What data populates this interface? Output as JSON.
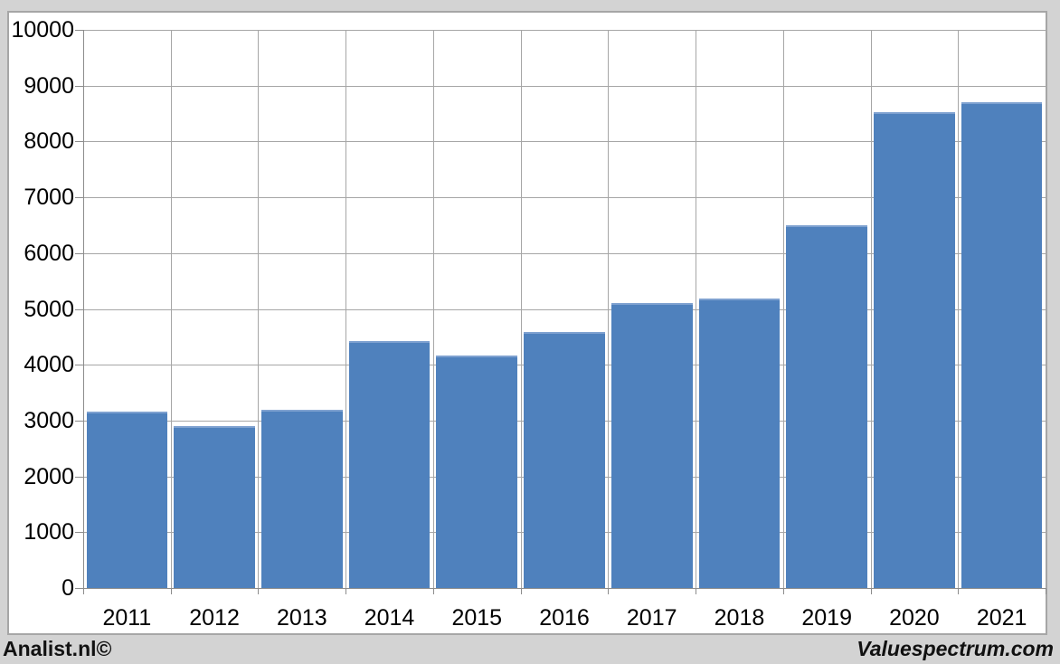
{
  "chart_data": {
    "type": "bar",
    "title": "",
    "xlabel": "",
    "ylabel": "",
    "categories": [
      "2011",
      "2012",
      "2013",
      "2014",
      "2015",
      "2016",
      "2017",
      "2018",
      "2019",
      "2020",
      "2021"
    ],
    "values": [
      3160,
      2900,
      3200,
      4420,
      4170,
      4580,
      5110,
      5180,
      6500,
      8530,
      8710
    ],
    "ylim": [
      0,
      10000
    ],
    "ytick_interval": 1000,
    "yticks": [
      "0",
      "1000",
      "2000",
      "3000",
      "4000",
      "5000",
      "6000",
      "7000",
      "8000",
      "9000",
      "10000"
    ],
    "grid": true,
    "legend": null,
    "colors": {
      "bar": "#4f81bd",
      "bar_top_highlight": "#7ea1d0",
      "gridline": "#a6a6a6",
      "axis": "#8c8c8c",
      "plot_background": "#ffffff",
      "outer_background": "#d3d3d3",
      "frame_border": "#a6a6a6",
      "text": "#000000"
    }
  },
  "footer": {
    "left_text": "Analist.nl©",
    "right_text": "Valuespectrum.com"
  }
}
